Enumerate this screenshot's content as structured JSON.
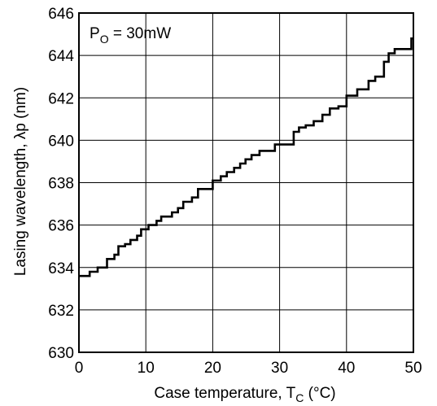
{
  "chart_data": {
    "type": "line",
    "title": "",
    "xlabel": "Case temperature,  T",
    "xlabel_sub": "C",
    "xlabel_unit": "  (°C)",
    "ylabel": "Lasing wavelength,  λp  (nm)",
    "xlim": [
      0,
      50
    ],
    "ylim": [
      630,
      646
    ],
    "xticks": [
      0,
      10,
      20,
      30,
      40,
      50
    ],
    "xtick_labels": [
      "0",
      "10",
      "20",
      "30",
      "40",
      "50"
    ],
    "yticks": [
      630,
      632,
      634,
      636,
      638,
      640,
      642,
      644,
      646
    ],
    "ytick_labels": [
      "630",
      "632",
      "634",
      "636",
      "638",
      "640",
      "642",
      "644",
      "646"
    ],
    "grid": true,
    "annotation": {
      "prefix": "P",
      "sub": "O",
      "suffix": " = 30mW"
    },
    "series": [
      {
        "step": true,
        "color": "#000000",
        "points": [
          [
            0,
            633.6
          ],
          [
            1.6,
            633.6
          ],
          [
            1.6,
            633.8
          ],
          [
            2.8,
            633.8
          ],
          [
            2.8,
            634.0
          ],
          [
            4.2,
            634.0
          ],
          [
            4.2,
            634.4
          ],
          [
            5.3,
            634.4
          ],
          [
            5.3,
            634.6
          ],
          [
            5.9,
            634.6
          ],
          [
            5.9,
            635.0
          ],
          [
            6.9,
            635.0
          ],
          [
            6.9,
            635.1
          ],
          [
            7.7,
            635.1
          ],
          [
            7.7,
            635.3
          ],
          [
            8.7,
            635.3
          ],
          [
            8.7,
            635.5
          ],
          [
            9.3,
            635.5
          ],
          [
            9.3,
            635.8
          ],
          [
            10.4,
            635.8
          ],
          [
            10.4,
            636.0
          ],
          [
            11.6,
            636.0
          ],
          [
            11.6,
            636.2
          ],
          [
            12.3,
            636.2
          ],
          [
            12.3,
            636.4
          ],
          [
            13.9,
            636.4
          ],
          [
            13.9,
            636.6
          ],
          [
            14.8,
            636.6
          ],
          [
            14.8,
            636.8
          ],
          [
            15.6,
            636.8
          ],
          [
            15.6,
            637.1
          ],
          [
            16.9,
            637.1
          ],
          [
            16.9,
            637.3
          ],
          [
            17.8,
            637.3
          ],
          [
            17.8,
            637.7
          ],
          [
            20.0,
            637.7
          ],
          [
            20.0,
            638.1
          ],
          [
            21.2,
            638.1
          ],
          [
            21.2,
            638.3
          ],
          [
            22.1,
            638.3
          ],
          [
            22.1,
            638.5
          ],
          [
            23.2,
            638.5
          ],
          [
            23.2,
            638.7
          ],
          [
            24.1,
            638.7
          ],
          [
            24.1,
            638.9
          ],
          [
            24.9,
            638.9
          ],
          [
            24.9,
            639.1
          ],
          [
            25.8,
            639.1
          ],
          [
            25.8,
            639.3
          ],
          [
            27.0,
            639.3
          ],
          [
            27.0,
            639.5
          ],
          [
            29.3,
            639.5
          ],
          [
            29.3,
            639.8
          ],
          [
            32.1,
            639.8
          ],
          [
            32.1,
            640.4
          ],
          [
            32.9,
            640.4
          ],
          [
            32.9,
            640.6
          ],
          [
            33.9,
            640.6
          ],
          [
            33.9,
            640.7
          ],
          [
            35.1,
            640.7
          ],
          [
            35.1,
            640.9
          ],
          [
            36.4,
            640.9
          ],
          [
            36.4,
            641.2
          ],
          [
            37.5,
            641.2
          ],
          [
            37.5,
            641.5
          ],
          [
            38.8,
            641.5
          ],
          [
            38.8,
            641.6
          ],
          [
            40.0,
            641.6
          ],
          [
            40.0,
            642.1
          ],
          [
            41.6,
            642.1
          ],
          [
            41.6,
            642.4
          ],
          [
            43.3,
            642.4
          ],
          [
            43.3,
            642.8
          ],
          [
            44.3,
            642.8
          ],
          [
            44.3,
            643.0
          ],
          [
            45.6,
            643.0
          ],
          [
            45.6,
            643.7
          ],
          [
            46.3,
            643.7
          ],
          [
            46.3,
            644.1
          ],
          [
            47.2,
            644.1
          ],
          [
            47.2,
            644.3
          ],
          [
            49.7,
            644.3
          ],
          [
            49.7,
            644.8
          ],
          [
            50.0,
            644.8
          ]
        ]
      }
    ]
  }
}
